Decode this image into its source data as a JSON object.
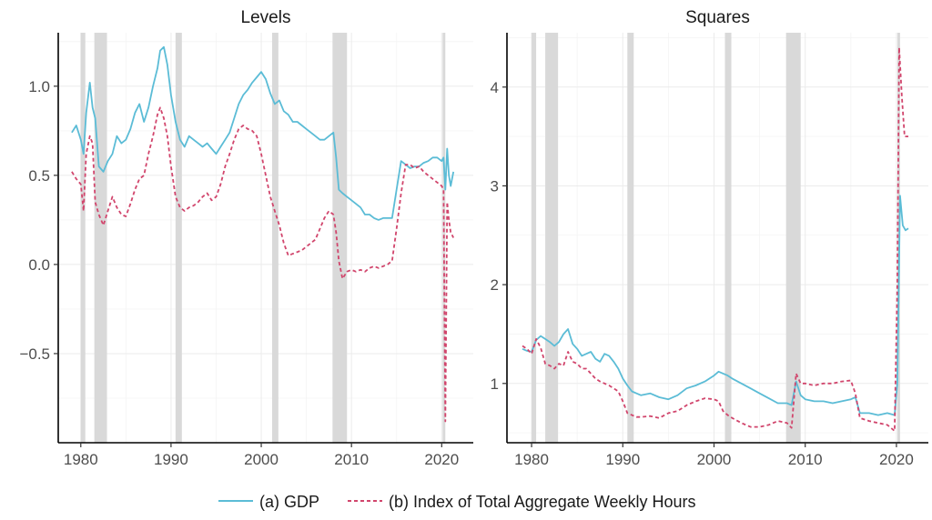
{
  "chart_data": {
    "type": "line",
    "legend": {
      "position": "bottom",
      "entries": [
        {
          "label": "(a) GDP",
          "color": "#5bbcd6",
          "dash": "solid"
        },
        {
          "label": "(b) Index of Total Aggregate Weekly Hours",
          "color": "#d1456c",
          "dash": "dashed"
        }
      ]
    },
    "recession_shading": [
      [
        1980.0,
        1980.5
      ],
      [
        1981.5,
        1982.9
      ],
      [
        1990.5,
        1991.2
      ],
      [
        2001.2,
        2001.9
      ],
      [
        2007.9,
        2009.5
      ],
      [
        2020.1,
        2020.4
      ]
    ],
    "recession_color": "#d9d9d9",
    "panels": [
      {
        "title": "Levels",
        "xlim": [
          1977.5,
          2023.5
        ],
        "ylim": [
          -1.0,
          1.3
        ],
        "xticks": [
          1980,
          1990,
          2000,
          2010,
          2020
        ],
        "xtick_labels": [
          "1980",
          "1990",
          "2000",
          "2010",
          "2020"
        ],
        "yticks": [
          -0.5,
          0.0,
          0.5,
          1.0
        ],
        "ytick_labels": [
          "−0.5",
          "0.0",
          "0.5",
          "1.0"
        ],
        "grid": true,
        "series": [
          {
            "name": "(a) GDP",
            "x": [
              1979.0,
              1979.5,
              1980.0,
              1980.3,
              1980.6,
              1981.0,
              1981.3,
              1981.6,
              1982.0,
              1982.5,
              1983.0,
              1983.5,
              1984.0,
              1984.5,
              1985.0,
              1985.5,
              1986.0,
              1986.5,
              1987.0,
              1987.5,
              1988.0,
              1988.5,
              1988.8,
              1989.2,
              1989.6,
              1990.0,
              1990.5,
              1991.0,
              1991.5,
              1992.0,
              1992.5,
              1993.0,
              1993.5,
              1994.0,
              1994.5,
              1995.0,
              1995.5,
              1996.0,
              1996.5,
              1997.0,
              1997.5,
              1998.0,
              1998.5,
              1999.0,
              1999.5,
              2000.0,
              2000.5,
              2001.0,
              2001.5,
              2002.0,
              2002.5,
              2003.0,
              2003.5,
              2004.0,
              2004.5,
              2005.0,
              2005.5,
              2006.0,
              2006.5,
              2007.0,
              2007.5,
              2008.0,
              2008.3,
              2008.6,
              2009.0,
              2009.5,
              2010.0,
              2010.5,
              2011.0,
              2011.5,
              2012.0,
              2012.5,
              2013.0,
              2013.5,
              2014.0,
              2014.5,
              2015.0,
              2015.5,
              2016.0,
              2016.5,
              2017.0,
              2017.5,
              2018.0,
              2018.5,
              2019.0,
              2019.5,
              2020.0,
              2020.2,
              2020.4,
              2020.6,
              2020.8,
              2021.0,
              2021.3
            ],
            "y": [
              0.74,
              0.78,
              0.7,
              0.62,
              0.85,
              1.02,
              0.88,
              0.82,
              0.55,
              0.52,
              0.58,
              0.62,
              0.72,
              0.68,
              0.7,
              0.76,
              0.85,
              0.9,
              0.8,
              0.88,
              1.0,
              1.1,
              1.2,
              1.22,
              1.12,
              0.95,
              0.8,
              0.7,
              0.66,
              0.72,
              0.7,
              0.68,
              0.66,
              0.68,
              0.65,
              0.62,
              0.66,
              0.7,
              0.74,
              0.82,
              0.9,
              0.95,
              0.98,
              1.02,
              1.05,
              1.08,
              1.04,
              0.96,
              0.9,
              0.92,
              0.86,
              0.84,
              0.8,
              0.8,
              0.78,
              0.76,
              0.74,
              0.72,
              0.7,
              0.7,
              0.72,
              0.74,
              0.6,
              0.42,
              0.4,
              0.38,
              0.36,
              0.34,
              0.32,
              0.28,
              0.28,
              0.26,
              0.25,
              0.26,
              0.26,
              0.26,
              0.42,
              0.58,
              0.56,
              0.54,
              0.55,
              0.55,
              0.57,
              0.58,
              0.6,
              0.6,
              0.58,
              0.6,
              0.42,
              0.65,
              0.5,
              0.44,
              0.52
            ]
          },
          {
            "name": "(b) Index of Total Aggregate Weekly Hours",
            "x": [
              1979.0,
              1979.5,
              1980.0,
              1980.3,
              1980.6,
              1981.0,
              1981.3,
              1981.6,
              1982.0,
              1982.5,
              1983.0,
              1983.5,
              1984.0,
              1984.5,
              1985.0,
              1985.5,
              1986.0,
              1986.5,
              1987.0,
              1987.5,
              1988.0,
              1988.5,
              1988.8,
              1989.2,
              1989.6,
              1990.0,
              1990.5,
              1991.0,
              1991.5,
              1992.0,
              1992.5,
              1993.0,
              1993.5,
              1994.0,
              1994.5,
              1995.0,
              1995.5,
              1996.0,
              1996.5,
              1997.0,
              1997.5,
              1998.0,
              1998.5,
              1999.0,
              1999.5,
              2000.0,
              2000.5,
              2001.0,
              2001.5,
              2002.0,
              2002.5,
              2003.0,
              2003.5,
              2004.0,
              2004.5,
              2005.0,
              2005.5,
              2006.0,
              2006.5,
              2007.0,
              2007.5,
              2008.0,
              2008.3,
              2008.6,
              2009.0,
              2009.5,
              2010.0,
              2010.5,
              2011.0,
              2011.5,
              2012.0,
              2012.5,
              2013.0,
              2013.5,
              2014.0,
              2014.5,
              2015.0,
              2015.5,
              2016.0,
              2016.5,
              2017.0,
              2017.5,
              2018.0,
              2018.5,
              2019.0,
              2019.5,
              2020.0,
              2020.2,
              2020.4,
              2020.6,
              2020.8,
              2021.0,
              2021.3
            ],
            "y": [
              0.52,
              0.48,
              0.45,
              0.3,
              0.62,
              0.72,
              0.68,
              0.35,
              0.28,
              0.22,
              0.3,
              0.38,
              0.32,
              0.28,
              0.27,
              0.34,
              0.42,
              0.48,
              0.5,
              0.62,
              0.72,
              0.84,
              0.88,
              0.82,
              0.72,
              0.55,
              0.38,
              0.32,
              0.3,
              0.32,
              0.33,
              0.35,
              0.38,
              0.4,
              0.36,
              0.38,
              0.45,
              0.55,
              0.62,
              0.7,
              0.76,
              0.78,
              0.76,
              0.75,
              0.72,
              0.62,
              0.5,
              0.38,
              0.3,
              0.22,
              0.12,
              0.05,
              0.06,
              0.07,
              0.08,
              0.1,
              0.12,
              0.14,
              0.2,
              0.26,
              0.3,
              0.28,
              0.18,
              0.02,
              -0.08,
              -0.04,
              -0.03,
              -0.04,
              -0.03,
              -0.04,
              -0.02,
              -0.01,
              -0.02,
              -0.01,
              0.0,
              0.02,
              0.2,
              0.4,
              0.56,
              0.56,
              0.54,
              0.55,
              0.52,
              0.5,
              0.48,
              0.46,
              0.44,
              0.42,
              -0.88,
              0.35,
              0.25,
              0.18,
              0.15
            ]
          }
        ]
      },
      {
        "title": "Squares",
        "xlim": [
          1977.3,
          2023.5
        ],
        "ylim": [
          0.4,
          4.55
        ],
        "xticks": [
          1980,
          1990,
          2000,
          2010,
          2020
        ],
        "xtick_labels": [
          "1980",
          "1990",
          "2000",
          "2010",
          "2020"
        ],
        "yticks": [
          1,
          2,
          3,
          4
        ],
        "ytick_labels": [
          "1",
          "2",
          "3",
          "4"
        ],
        "grid": true,
        "series": [
          {
            "name": "(a) GDP",
            "x": [
              1979.0,
              1979.5,
              1980.0,
              1980.5,
              1981.0,
              1981.5,
              1982.0,
              1982.5,
              1983.0,
              1983.5,
              1984.0,
              1984.5,
              1985.0,
              1985.5,
              1986.0,
              1986.5,
              1987.0,
              1987.5,
              1988.0,
              1988.5,
              1989.0,
              1989.5,
              1990.0,
              1990.5,
              1991.0,
              1991.5,
              1992.0,
              1993.0,
              1994.0,
              1995.0,
              1996.0,
              1997.0,
              1998.0,
              1999.0,
              2000.0,
              2000.5,
              2001.0,
              2001.5,
              2002.0,
              2003.0,
              2004.0,
              2005.0,
              2006.0,
              2007.0,
              2008.0,
              2008.5,
              2009.0,
              2009.5,
              2010.0,
              2011.0,
              2012.0,
              2013.0,
              2014.0,
              2015.0,
              2015.5,
              2016.0,
              2017.0,
              2018.0,
              2019.0,
              2019.8,
              2020.1,
              2020.4,
              2020.7,
              2021.0,
              2021.3
            ],
            "y": [
              1.35,
              1.33,
              1.32,
              1.44,
              1.48,
              1.45,
              1.42,
              1.38,
              1.42,
              1.5,
              1.55,
              1.4,
              1.35,
              1.28,
              1.3,
              1.32,
              1.25,
              1.22,
              1.3,
              1.28,
              1.22,
              1.15,
              1.05,
              0.98,
              0.92,
              0.9,
              0.88,
              0.9,
              0.86,
              0.84,
              0.88,
              0.95,
              0.98,
              1.02,
              1.08,
              1.12,
              1.1,
              1.08,
              1.05,
              1.0,
              0.95,
              0.9,
              0.85,
              0.8,
              0.8,
              0.78,
              1.02,
              0.88,
              0.84,
              0.82,
              0.82,
              0.8,
              0.82,
              0.84,
              0.86,
              0.7,
              0.7,
              0.68,
              0.7,
              0.68,
              1.0,
              2.9,
              2.6,
              2.55,
              2.57
            ]
          },
          {
            "name": "(b) Index of Total Aggregate Weekly Hours",
            "x": [
              1979.0,
              1979.5,
              1980.0,
              1980.5,
              1981.0,
              1981.5,
              1982.0,
              1982.5,
              1983.0,
              1983.5,
              1984.0,
              1984.5,
              1985.0,
              1985.5,
              1986.0,
              1986.5,
              1987.0,
              1987.5,
              1988.0,
              1988.5,
              1989.0,
              1989.5,
              1990.0,
              1990.5,
              1991.0,
              1991.5,
              1992.0,
              1993.0,
              1994.0,
              1995.0,
              1996.0,
              1997.0,
              1998.0,
              1999.0,
              2000.0,
              2000.5,
              2001.0,
              2001.5,
              2002.0,
              2003.0,
              2004.0,
              2005.0,
              2006.0,
              2007.0,
              2008.0,
              2008.5,
              2009.0,
              2009.5,
              2010.0,
              2011.0,
              2012.0,
              2013.0,
              2014.0,
              2015.0,
              2015.5,
              2016.0,
              2017.0,
              2018.0,
              2019.0,
              2019.8,
              2020.1,
              2020.3,
              2020.6,
              2020.9,
              2021.3
            ],
            "y": [
              1.38,
              1.35,
              1.3,
              1.45,
              1.36,
              1.2,
              1.18,
              1.15,
              1.2,
              1.18,
              1.32,
              1.22,
              1.2,
              1.15,
              1.15,
              1.1,
              1.05,
              1.02,
              1.0,
              0.98,
              0.95,
              0.92,
              0.82,
              0.7,
              0.68,
              0.66,
              0.66,
              0.67,
              0.65,
              0.7,
              0.72,
              0.78,
              0.82,
              0.85,
              0.84,
              0.82,
              0.72,
              0.68,
              0.65,
              0.6,
              0.56,
              0.56,
              0.58,
              0.62,
              0.6,
              0.55,
              1.1,
              1.0,
              1.0,
              0.98,
              1.0,
              1.0,
              1.02,
              1.03,
              0.9,
              0.65,
              0.62,
              0.6,
              0.58,
              0.52,
              2.0,
              4.4,
              3.9,
              3.5,
              3.5
            ]
          }
        ]
      }
    ]
  }
}
